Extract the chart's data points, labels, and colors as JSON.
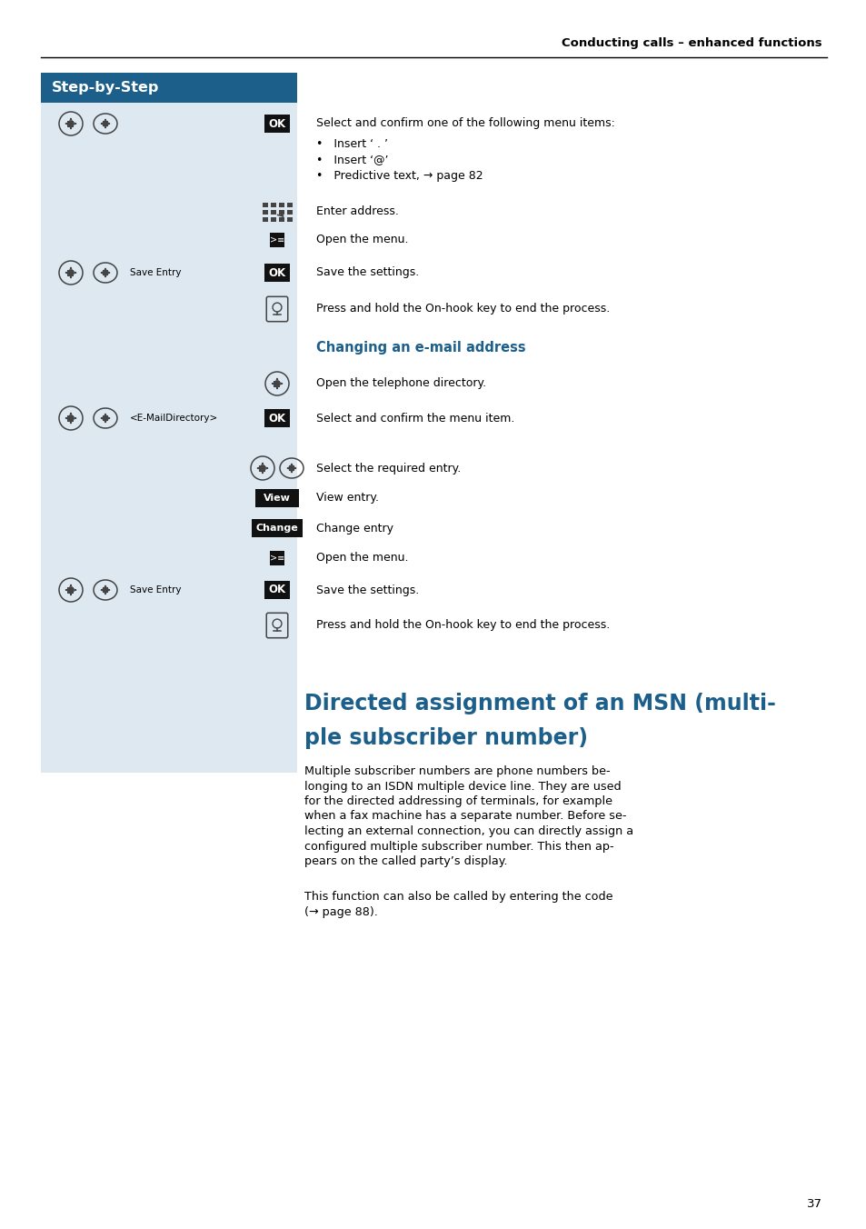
{
  "page_bg": "#ffffff",
  "header_text": "Conducting calls – enhanced functions",
  "header_color": "#000000",
  "sbs_header_bg": "#1c5f8a",
  "sbs_body_bg": "#dde8f0",
  "sbs_title": "Step-by-Step",
  "section_color": "#1c5f8a",
  "body_color": "#000000",
  "page_number": "37",
  "section2_title_line1": "Directed assignment of an MSN (multi-",
  "section2_title_line2": "ple subscriber number)",
  "section2_para1_lines": [
    "Multiple subscriber numbers are phone numbers be-",
    "longing to an ISDN multiple device line. They are used",
    "for the directed addressing of terminals, for example",
    "when a fax machine has a separate number. Before se-",
    "lecting an external connection, you can directly assign a",
    "configured multiple subscriber number. This then ap-",
    "pears on the called party’s display."
  ],
  "section2_para2_lines": [
    "This function can also be called by entering the code",
    "(→ page 88)."
  ]
}
